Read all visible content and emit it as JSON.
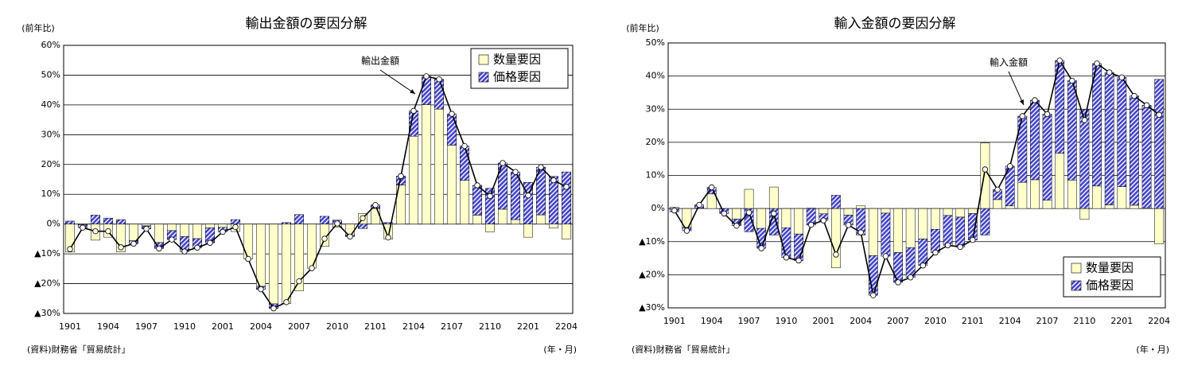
{
  "chart_data": [
    {
      "type": "bar",
      "stacked": true,
      "title": "輸出金額の要因分解",
      "ylabel": "(前年比)",
      "xlabel": "(年・月)",
      "source": "(資料)財務省「貿易統計」",
      "categories": [
        "1901",
        null,
        null,
        "1904",
        null,
        null,
        "1907",
        null,
        null,
        "1910",
        null,
        null,
        "2001",
        null,
        null,
        "2004",
        null,
        null,
        "2007",
        null,
        null,
        "2010",
        null,
        null,
        "2101",
        null,
        null,
        "2104",
        null,
        null,
        "2107",
        null,
        null,
        "2110",
        null,
        null,
        "2201",
        null,
        null,
        "2204"
      ],
      "series": [
        {
          "name": "数量要因",
          "color": "#ffffcc",
          "hatch": false,
          "values": [
            -9.4,
            -0.2,
            -5.4,
            -4.4,
            -9.3,
            -5.6,
            -0.6,
            -6.2,
            -2.2,
            -4.2,
            -4.9,
            -1.3,
            -1.1,
            -2.5,
            -11.7,
            -20.9,
            -26.8,
            -26.7,
            -22.4,
            -14.8,
            -7.5,
            -1.1,
            -3.7,
            3.5,
            5.2,
            -5.0,
            13.1,
            29.5,
            40.1,
            38.6,
            26.5,
            14.7,
            3.0,
            -2.6,
            5.0,
            1.5,
            -4.4,
            3.1,
            -1.3,
            -5.0
          ]
        },
        {
          "name": "価格要因",
          "color": "#4444cc",
          "hatch": true,
          "values": [
            1,
            -1,
            3,
            2,
            1.5,
            -1,
            -1,
            -2,
            -3,
            -5,
            -3,
            -5,
            -1.5,
            1.5,
            0,
            -1,
            -1.5,
            0.5,
            3.2,
            0,
            2.6,
            1.3,
            -0.5,
            -1.5,
            1.2,
            0.5,
            3,
            8.5,
            9.5,
            10,
            10.5,
            11.5,
            10,
            12,
            15.5,
            16,
            14,
            16,
            16,
            17.5
          ]
        }
      ],
      "line": {
        "name": "輸出金額",
        "color": "#000000",
        "values": [
          -8.4,
          -1.2,
          -2.4,
          -2.4,
          -7.8,
          -6.6,
          -1.6,
          -8.2,
          -5.2,
          -9.2,
          -7.9,
          -6.3,
          -2.6,
          -1.0,
          -11.7,
          -21.9,
          -28.3,
          -26.2,
          -19.2,
          -14.8,
          -4.9,
          0.2,
          -4.2,
          2.0,
          6.4,
          -4.5,
          16.1,
          38.0,
          49.6,
          48.6,
          37.0,
          26.2,
          13.0,
          9.4,
          20.5,
          17.5,
          9.6,
          19.1,
          14.7,
          12.5
        ]
      },
      "ylim": [
        -30,
        60
      ],
      "yticks": [
        {
          "value": -30,
          "label": "▲30%"
        },
        {
          "value": -20,
          "label": "▲20%"
        },
        {
          "value": -10,
          "label": "▲10%"
        },
        {
          "value": 0,
          "label": "0%"
        },
        {
          "value": 10,
          "label": "10%"
        },
        {
          "value": 20,
          "label": "20%"
        },
        {
          "value": 30,
          "label": "30%"
        },
        {
          "value": 40,
          "label": "40%"
        },
        {
          "value": 50,
          "label": "50%"
        },
        {
          "value": 60,
          "label": "60%"
        }
      ],
      "grid": true,
      "legend": "upper right"
    },
    {
      "type": "bar",
      "stacked": true,
      "title": "輸入金額の要因分解",
      "ylabel": "(前年比)",
      "xlabel": "(年・月)",
      "source": "(資料)財務省「貿易統計」",
      "categories": [
        "1901",
        null,
        null,
        "1904",
        null,
        null,
        "1907",
        null,
        null,
        "1910",
        null,
        null,
        "2001",
        null,
        null,
        "2004",
        null,
        null,
        "2007",
        null,
        null,
        "2010",
        null,
        null,
        "2101",
        null,
        null,
        "2104",
        null,
        null,
        "2107",
        null,
        null,
        "2110",
        null,
        null,
        "2201",
        null,
        null,
        "2204"
      ],
      "series": [
        {
          "name": "数量要因",
          "color": "#ffffcc",
          "hatch": false,
          "values": [
            0.4,
            -5.7,
            0.1,
            4.4,
            0,
            -3.2,
            5.8,
            -6,
            6.5,
            -5.8,
            -7.7,
            0.1,
            -1.6,
            -17.9,
            -2,
            0.8,
            -14.2,
            -1.4,
            -13.3,
            -11.8,
            -9.2,
            -6.3,
            -2.1,
            -2.6,
            -1.5,
            19.8,
            2.7,
            0.8,
            7.9,
            8.7,
            2.5,
            16.7,
            8.6,
            -3.3,
            6.8,
            1.1,
            6.6,
            1,
            0.2,
            -10.7
          ]
        },
        {
          "name": "価格要因",
          "color": "#4444cc",
          "hatch": true,
          "values": [
            -1,
            -1,
            1,
            2,
            -1.5,
            -2,
            -7,
            -6,
            -8,
            -9,
            -8,
            -5,
            -2,
            4,
            -3,
            -8,
            -12,
            -13,
            -9,
            -9,
            -8,
            -7,
            -9,
            -9,
            -8,
            -8,
            3,
            12,
            20,
            24,
            26,
            28,
            30,
            30,
            37,
            40,
            33,
            33,
            31,
            39
          ]
        }
      ],
      "line": {
        "name": "輸入金額",
        "color": "#000000",
        "values": [
          -0.6,
          -6.7,
          1.1,
          6.4,
          -1.5,
          -5.2,
          -1.2,
          -12.0,
          -1.5,
          -14.8,
          -15.7,
          -4.9,
          -3.6,
          -13.9,
          -5.0,
          -7.2,
          -26.2,
          -14.4,
          -22.3,
          -20.8,
          -17.2,
          -13.3,
          -11.1,
          -11.6,
          -9.5,
          11.8,
          5.7,
          12.8,
          27.9,
          32.7,
          28.5,
          44.7,
          38.6,
          26.7,
          43.8,
          41.1,
          39.6,
          34.0,
          31.2,
          28.3
        ]
      },
      "ylim": [
        -30,
        50
      ],
      "yticks": [
        {
          "value": -30,
          "label": "▲30%"
        },
        {
          "value": -20,
          "label": "▲20%"
        },
        {
          "value": -10,
          "label": "▲10%"
        },
        {
          "value": 0,
          "label": "0%"
        },
        {
          "value": 10,
          "label": "10%"
        },
        {
          "value": 20,
          "label": "20%"
        },
        {
          "value": 30,
          "label": "30%"
        },
        {
          "value": 40,
          "label": "40%"
        },
        {
          "value": 50,
          "label": "50%"
        }
      ],
      "grid": true,
      "legend": "lower right"
    }
  ]
}
